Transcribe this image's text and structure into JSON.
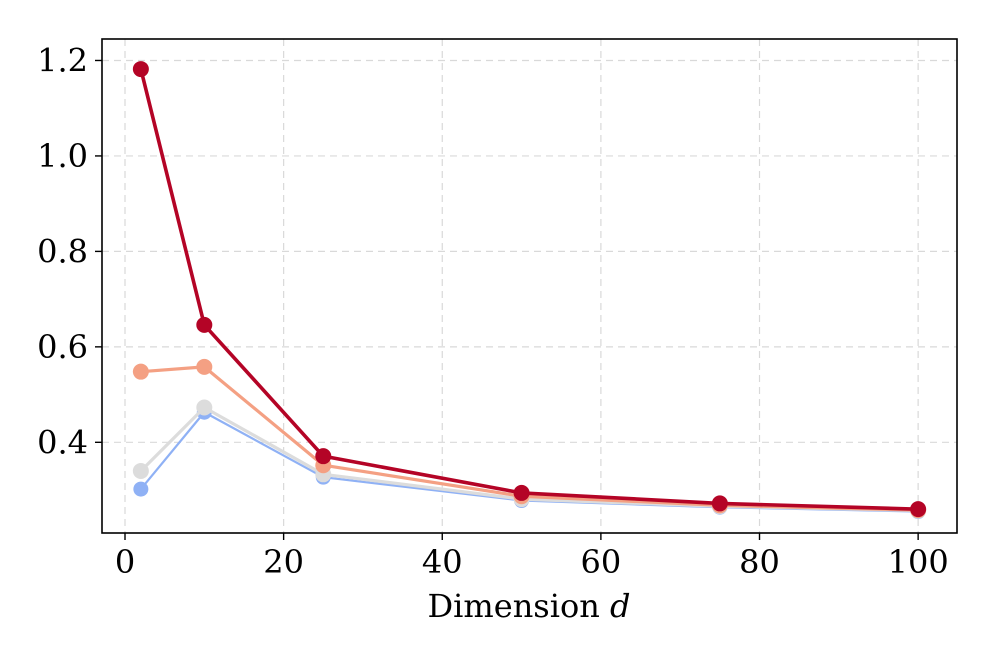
{
  "chart_data": {
    "type": "line",
    "title": "",
    "xlabel": "Dimension",
    "xlabel_var": "d",
    "ylabel": "",
    "x": [
      2,
      10,
      25,
      50,
      75,
      100
    ],
    "xlim": [
      -2.9,
      104.9
    ],
    "ylim": [
      0.21,
      1.245
    ],
    "xticks": [
      0,
      20,
      40,
      60,
      80,
      100
    ],
    "xtick_labels": [
      "0",
      "20",
      "40",
      "60",
      "80",
      "100"
    ],
    "yticks": [
      0.4,
      0.6,
      0.8,
      1.0,
      1.2
    ],
    "ytick_labels": [
      "0.4",
      "0.6",
      "0.8",
      "1.0",
      "1.2"
    ],
    "grid": true,
    "legend": "none",
    "series": [
      {
        "color": "#8fb1f5",
        "line_width": 2.2,
        "marker_radius": 7.5,
        "values": [
          0.302,
          0.463,
          0.327,
          0.278,
          0.264,
          0.255
        ]
      },
      {
        "color": "#dcdcdc",
        "line_width": 3.2,
        "marker_radius": 8,
        "values": [
          0.34,
          0.473,
          0.333,
          0.281,
          0.266,
          0.257
        ]
      },
      {
        "color": "#f4a083",
        "line_width": 3.2,
        "marker_radius": 8,
        "values": [
          0.548,
          0.558,
          0.352,
          0.287,
          0.268,
          0.258
        ]
      },
      {
        "color": "#b40426",
        "line_width": 3.6,
        "marker_radius": 8,
        "values": [
          1.182,
          0.646,
          0.371,
          0.294,
          0.272,
          0.26
        ]
      }
    ]
  }
}
